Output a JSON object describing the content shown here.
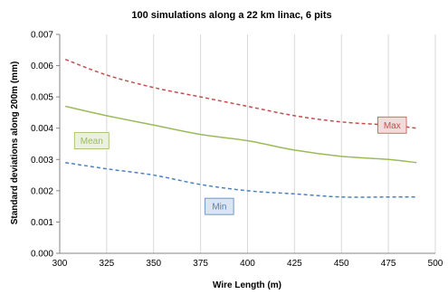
{
  "chart_data": {
    "type": "line",
    "title": "100 simulations along a 22 km linac, 6 pits",
    "xlabel": "Wire Length (m)",
    "ylabel": "Standard deviations along 200m (mm)",
    "xlim": [
      300,
      500
    ],
    "ylim": [
      0,
      0.007
    ],
    "x_ticks": [
      "300",
      "325",
      "350",
      "375",
      "400",
      "425",
      "450",
      "475",
      "500"
    ],
    "y_ticks": [
      "0.000",
      "0.001",
      "0.002",
      "0.003",
      "0.004",
      "0.005",
      "0.006",
      "0.007"
    ],
    "grid": "vertical",
    "legend": "none",
    "x": [
      303,
      325,
      350,
      375,
      400,
      425,
      450,
      475,
      490
    ],
    "series": [
      {
        "name": "Max",
        "color": "#C0504D",
        "dash": "dashed",
        "values": [
          0.0062,
          0.0057,
          0.0053,
          0.005,
          0.0047,
          0.0044,
          0.0042,
          0.0041,
          0.004
        ]
      },
      {
        "name": "Mean",
        "color": "#9BBB59",
        "dash": "solid",
        "values": [
          0.0047,
          0.0044,
          0.0041,
          0.0038,
          0.0036,
          0.0033,
          0.0031,
          0.003,
          0.0029
        ]
      },
      {
        "name": "Min",
        "color": "#4F81BD",
        "dash": "dashed",
        "values": [
          0.0029,
          0.0027,
          0.0025,
          0.0022,
          0.002,
          0.0019,
          0.0018,
          0.0018,
          0.0018
        ]
      }
    ],
    "annotations": [
      {
        "text": "Max",
        "series": "Max",
        "x": 477,
        "y": 0.0041,
        "fill": "#F2DCDB",
        "stroke": "#C0504D",
        "textColor": "#C0504D"
      },
      {
        "text": "Mean",
        "series": "Mean",
        "x": 317,
        "y": 0.0036,
        "fill": "#EBF1DE",
        "stroke": "#9BBB59",
        "textColor": "#9BBB59"
      },
      {
        "text": "Min",
        "series": "Min",
        "x": 385,
        "y": 0.0015,
        "fill": "#DBE5F1",
        "stroke": "#4F81BD",
        "textColor": "#4F81BD"
      }
    ]
  }
}
